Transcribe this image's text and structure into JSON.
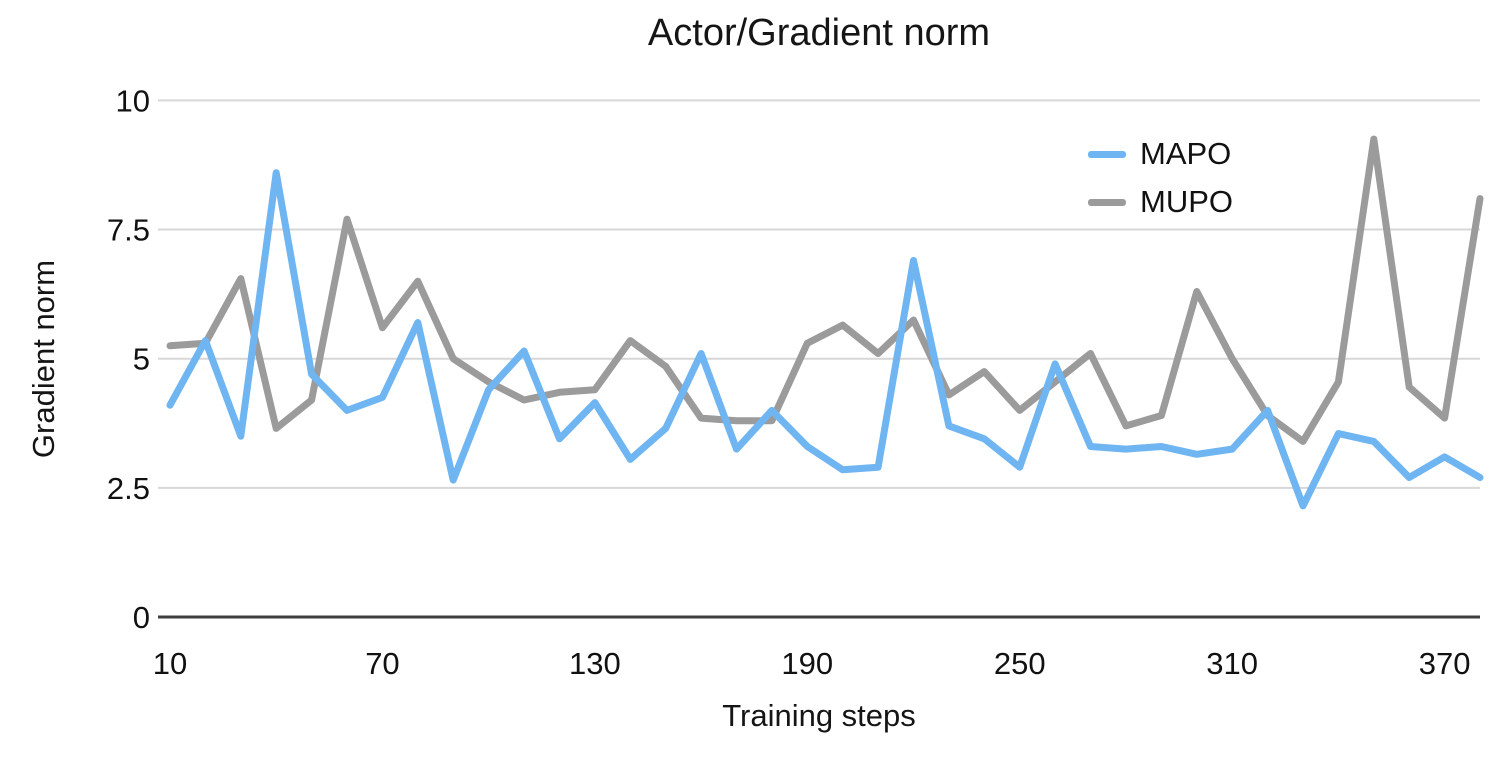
{
  "chart_data": {
    "type": "line",
    "title": "Actor/Gradient norm",
    "xlabel": "Training steps",
    "ylabel": "Gradient norm",
    "x": [
      10,
      20,
      30,
      40,
      50,
      60,
      70,
      80,
      90,
      100,
      110,
      120,
      130,
      140,
      150,
      160,
      170,
      180,
      190,
      200,
      210,
      220,
      230,
      240,
      250,
      260,
      270,
      280,
      290,
      300,
      310,
      320,
      330,
      340,
      350,
      360,
      370,
      380
    ],
    "series": [
      {
        "name": "MAPO",
        "color": "#6FB5F2",
        "values": [
          4.1,
          5.35,
          3.5,
          8.6,
          4.7,
          4.0,
          4.25,
          5.7,
          2.65,
          4.4,
          5.15,
          3.45,
          4.15,
          3.05,
          3.65,
          5.1,
          3.25,
          4.0,
          3.3,
          2.85,
          2.9,
          6.9,
          3.7,
          3.45,
          2.9,
          4.9,
          3.3,
          3.25,
          3.3,
          3.15,
          3.25,
          4.0,
          2.15,
          3.55,
          3.4,
          2.7,
          3.1,
          2.7
        ]
      },
      {
        "name": "MUPO",
        "color": "#9B9B9B",
        "values": [
          5.25,
          5.3,
          6.55,
          3.65,
          4.2,
          7.7,
          5.6,
          6.5,
          5.0,
          4.55,
          4.2,
          4.35,
          4.4,
          5.35,
          4.85,
          3.85,
          3.8,
          3.8,
          5.3,
          5.65,
          5.1,
          5.75,
          4.3,
          4.75,
          4.0,
          4.55,
          5.1,
          3.7,
          3.9,
          6.3,
          5.0,
          3.9,
          3.4,
          4.55,
          9.25,
          4.45,
          3.85,
          8.1
        ]
      }
    ],
    "ylim": [
      0,
      10
    ],
    "y_ticks": [
      0,
      2.5,
      5,
      7.5,
      10
    ],
    "x_ticks": [
      10,
      70,
      130,
      190,
      250,
      310,
      370
    ],
    "grid": "horizontal",
    "legend_position": "top-right"
  },
  "colors": {
    "grid": "#D7D7D7",
    "axis": "#3F3F3F",
    "tick_text": "#111111"
  }
}
